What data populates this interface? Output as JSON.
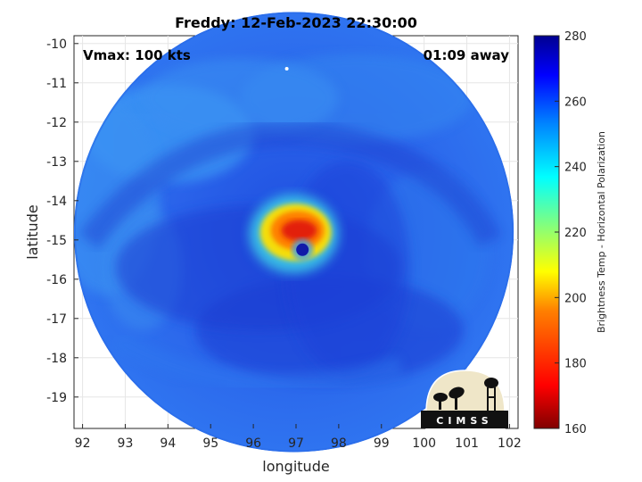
{
  "chart_data": {
    "type": "heatmap",
    "title": "Freddy: 12-Feb-2023 22:30:00",
    "xlabel": "longitude",
    "ylabel": "latitude",
    "xlim": [
      91.8,
      102.2
    ],
    "ylim": [
      -19.8,
      -9.8
    ],
    "xticks": [
      92,
      93,
      94,
      95,
      96,
      97,
      98,
      99,
      100,
      101,
      102
    ],
    "yticks": [
      -10,
      -11,
      -12,
      -13,
      -14,
      -15,
      -16,
      -17,
      -18,
      -19
    ],
    "grid": true,
    "swath": {
      "center_lon": 96.95,
      "center_lat": -14.8,
      "radius_deg": 5.15
    },
    "eye": {
      "lon": 97.15,
      "lat": -15.25
    },
    "warm_core": {
      "lon": 96.95,
      "lat": -14.85
    },
    "annotations": {
      "left": "Vmax: 100 kts",
      "right": "01:09 away"
    },
    "colorbar": {
      "label": "Brightness Temp - Horizontal Polarization",
      "min": 160,
      "max": 280,
      "ticks": [
        160,
        180,
        200,
        220,
        240,
        260,
        280
      ],
      "colormap": [
        "#800000",
        "#ff0000",
        "#ff8000",
        "#ffff00",
        "#80ff80",
        "#00ffff",
        "#0080ff",
        "#0000ff",
        "#000090"
      ]
    },
    "logo_text": "CIMSS"
  }
}
